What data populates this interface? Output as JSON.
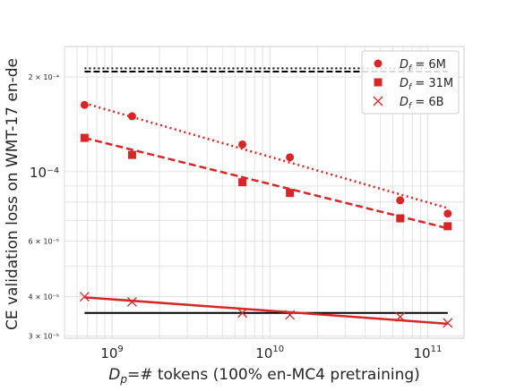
{
  "chart_data": {
    "type": "scatter",
    "xlabel": "D_p=# tokens (100% en-MC4 pretraining)",
    "xlabel_parts": {
      "var": "D",
      "sub": "p",
      "rest": "=# tokens (100% en-MC4 pretraining)"
    },
    "ylabel": "CE validation loss on WMT-17 en-de",
    "x_scale": "log",
    "y_scale": "log",
    "xlim": [
      500000000,
      170000000000
    ],
    "ylim": [
      2.95e-05,
      0.00025
    ],
    "x_ticks": [
      {
        "value": 1000000000,
        "base": "10",
        "exp": "9"
      },
      {
        "value": 10000000000,
        "base": "10",
        "exp": "10"
      },
      {
        "value": 100000000000,
        "base": "10",
        "exp": "11"
      }
    ],
    "y_ticks": [
      {
        "value": 0.0002,
        "label": "2 × 10⁻⁴",
        "major": false
      },
      {
        "value": 0.0001,
        "label": "10⁻⁴",
        "major": true
      },
      {
        "value": 6e-05,
        "label": "6 × 10⁻⁵",
        "major": false
      },
      {
        "value": 4e-05,
        "label": "4 × 10⁻⁵",
        "major": false
      },
      {
        "value": 3e-05,
        "label": "3 × 10⁻⁵",
        "major": false
      }
    ],
    "grid": true,
    "legend_position": "top-right",
    "series": [
      {
        "name": "D_f = 6M",
        "label_parts": {
          "var": "D",
          "sub": "f",
          "rest": " = 6M"
        },
        "marker": "circle",
        "color": "#d62728",
        "x": [
          670000000,
          1340000000,
          6700000000,
          13400000000,
          67000000000,
          134000000000
        ],
        "y": [
          0.000163,
          0.00015,
          0.000122,
          0.000111,
          8.1e-05,
          7.35e-05
        ],
        "fit": {
          "style": "dotted",
          "y": [
            0.000165,
            7.65e-05
          ]
        }
      },
      {
        "name": "D_f = 31M",
        "label_parts": {
          "var": "D",
          "sub": "f",
          "rest": " = 31M"
        },
        "marker": "square",
        "color": "#d62728",
        "x": [
          670000000,
          1340000000,
          6700000000,
          13400000000,
          67000000000,
          134000000000
        ],
        "y": [
          0.000128,
          0.000113,
          9.25e-05,
          8.55e-05,
          7.1e-05,
          6.7e-05
        ],
        "fit": {
          "style": "dashed",
          "y": [
            0.000128,
            6.6e-05
          ]
        }
      },
      {
        "name": "D_f = 6B",
        "label_parts": {
          "var": "D",
          "sub": "f",
          "rest": " = 6B"
        },
        "marker": "x",
        "color": "#d62728",
        "x": [
          670000000,
          1340000000,
          6700000000,
          13400000000,
          67000000000,
          134000000000
        ],
        "y": [
          4e-05,
          3.85e-05,
          3.55e-05,
          3.5e-05,
          3.45e-05,
          3.3e-05
        ],
        "fit": {
          "style": "solid",
          "y": [
            3.98e-05,
            3.28e-05
          ]
        }
      }
    ],
    "reference_lines": [
      {
        "style": "dotted",
        "color": "#000000",
        "y": 0.000213,
        "x": [
          670000000,
          134000000000
        ]
      },
      {
        "style": "dashed",
        "color": "#000000",
        "y": 0.000208,
        "x": [
          670000000,
          134000000000
        ]
      },
      {
        "style": "solid",
        "color": "#000000",
        "y": 3.55e-05,
        "x": [
          670000000,
          134000000000
        ]
      }
    ]
  }
}
